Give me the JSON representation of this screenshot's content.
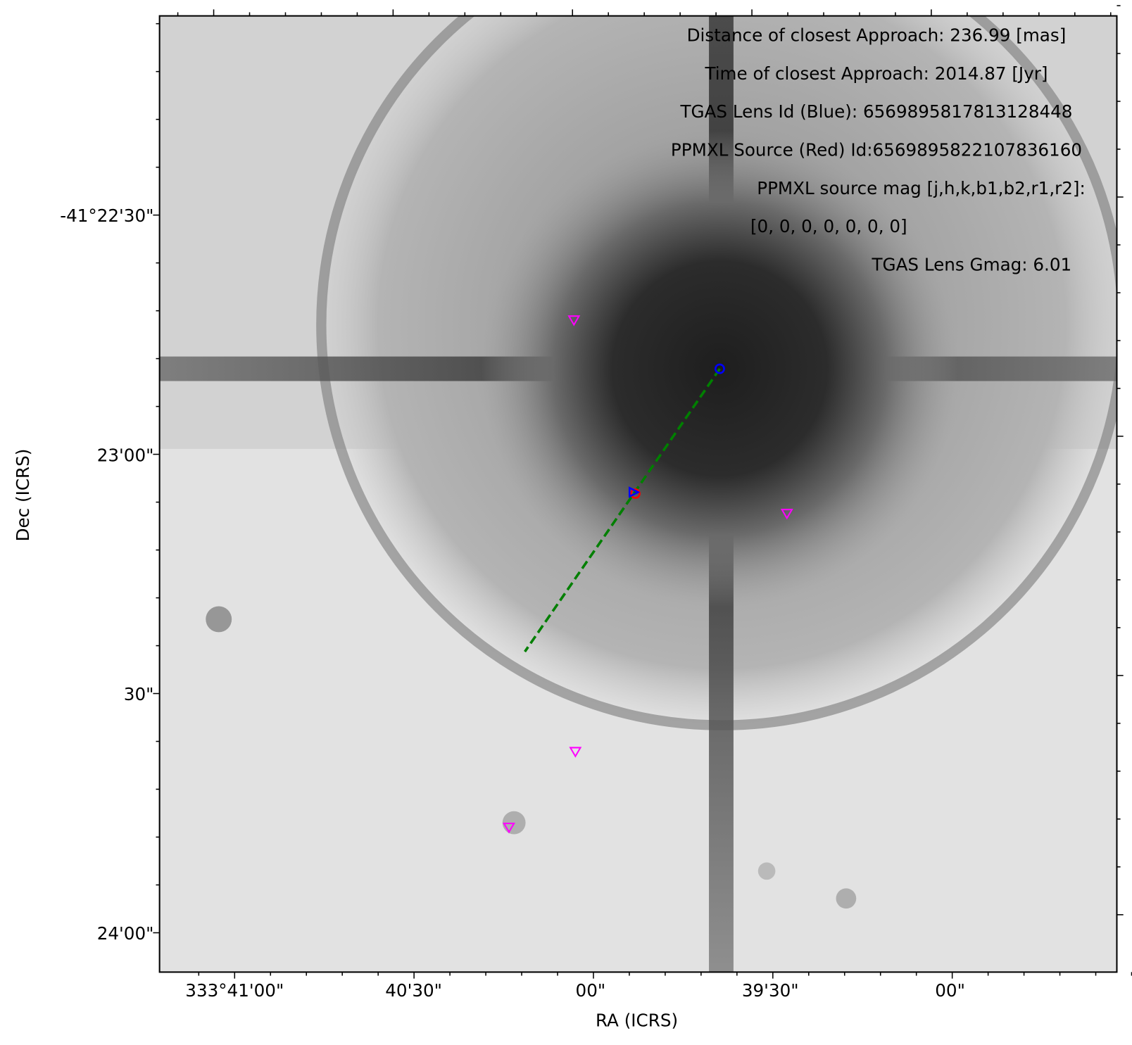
{
  "plot": {
    "x_label": "RA (ICRS)",
    "y_label": "Dec (ICRS)",
    "x_tick_labels": [
      "333°41'00\"",
      "40'30\"",
      "00\"",
      "39'30\"",
      "00\""
    ],
    "y_tick_labels": [
      "-41°22'30\"",
      "23'00\"",
      "30\"",
      "24'00\""
    ],
    "annotations": [
      "Distance of closest Approach: 236.99 [mas]",
      "Time of closest Approach: 2014.87 [Jyr]",
      "TGAS Lens Id (Blue): 6569895817813128448",
      "PPMXL Source (Red) Id:6569895822107836160",
      "PPMXL source mag [j,h,k,b1,b2,r1,r2]:",
      "[0, 0, 0, 0, 0, 0, 0]",
      "TGAS Lens Gmag: 6.01"
    ]
  }
}
